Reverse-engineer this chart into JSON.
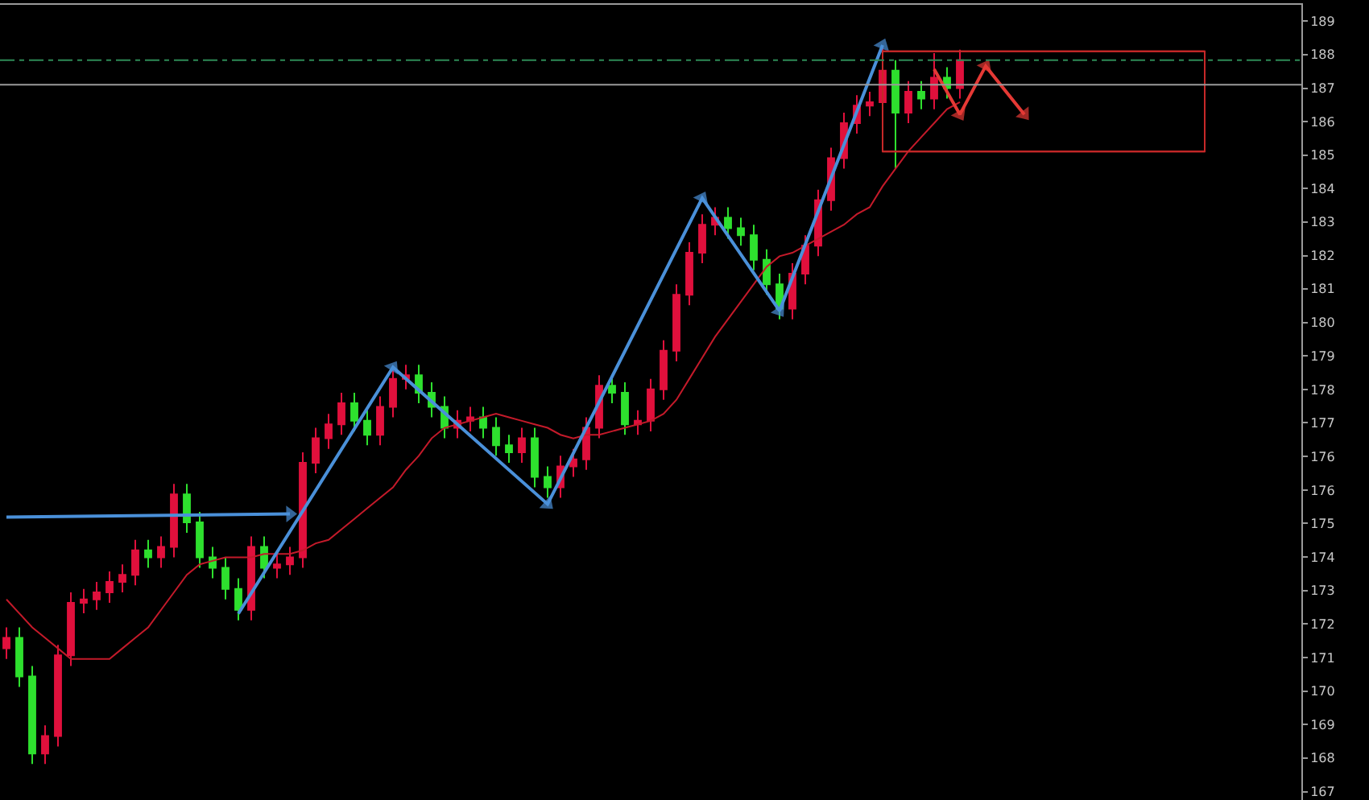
{
  "chart_data": {
    "type": "candlestick",
    "categories": [
      null,
      null,
      null,
      null,
      null,
      null,
      null,
      null,
      null,
      null,
      null,
      null,
      null,
      null,
      null,
      null,
      null,
      null,
      null,
      null,
      null,
      null,
      null,
      null,
      null,
      null,
      null,
      null,
      null,
      null,
      null,
      null,
      null,
      null,
      null,
      null,
      null,
      null,
      null,
      null,
      null,
      null,
      null,
      null,
      null,
      null,
      null,
      null,
      null,
      null,
      null,
      null,
      null,
      null,
      null,
      null,
      null,
      null,
      null,
      null,
      null,
      null,
      null,
      null,
      null,
      null,
      null,
      null,
      null,
      null,
      null,
      null,
      null,
      null,
      null,
      null,
      null,
      null,
      null,
      null,
      null,
      null,
      null,
      null,
      null,
      null,
      null,
      null,
      null,
      null,
      null,
      null,
      null,
      null,
      null,
      null,
      null,
      null,
      null,
      null,
      null
    ],
    "ohlc": [
      [
        171.0,
        171.6,
        170.7,
        171.3
      ],
      [
        171.3,
        171.6,
        169.9,
        170.2
      ],
      [
        170.2,
        170.5,
        167.7,
        168.0
      ],
      [
        168.0,
        168.8,
        167.7,
        168.5
      ],
      [
        168.5,
        171.1,
        168.2,
        170.8
      ],
      [
        170.8,
        172.6,
        170.5,
        172.3
      ],
      [
        172.3,
        172.7,
        172.0,
        172.4
      ],
      [
        172.4,
        172.9,
        172.1,
        172.6
      ],
      [
        172.6,
        173.2,
        172.3,
        172.9
      ],
      [
        172.9,
        173.4,
        172.6,
        173.1
      ],
      [
        173.1,
        174.1,
        172.8,
        173.8
      ],
      [
        173.8,
        174.1,
        173.3,
        173.6
      ],
      [
        173.6,
        174.2,
        173.3,
        173.9
      ],
      [
        173.9,
        175.7,
        173.6,
        175.4
      ],
      [
        175.4,
        175.7,
        174.3,
        174.6
      ],
      [
        174.6,
        174.9,
        173.3,
        173.6
      ],
      [
        173.6,
        173.9,
        173.0,
        173.3
      ],
      [
        173.3,
        173.6,
        172.4,
        172.7
      ],
      [
        172.7,
        173.0,
        171.8,
        172.1
      ],
      [
        172.1,
        174.2,
        171.8,
        173.9
      ],
      [
        173.9,
        174.2,
        173.0,
        173.3
      ],
      [
        173.3,
        173.7,
        173.0,
        173.4
      ],
      [
        173.4,
        173.9,
        173.1,
        173.6
      ],
      [
        173.6,
        176.6,
        173.3,
        176.3
      ],
      [
        176.3,
        177.3,
        176.0,
        177.0
      ],
      [
        177.0,
        177.7,
        176.7,
        177.4
      ],
      [
        177.4,
        178.3,
        177.1,
        178.0
      ],
      [
        178.0,
        178.3,
        177.2,
        177.5
      ],
      [
        177.5,
        177.8,
        176.8,
        177.1
      ],
      [
        177.1,
        178.2,
        176.8,
        177.9
      ],
      [
        177.9,
        179.0,
        177.6,
        178.7
      ],
      [
        178.7,
        179.1,
        178.4,
        178.8
      ],
      [
        178.8,
        179.1,
        178.0,
        178.3
      ],
      [
        178.3,
        178.6,
        177.6,
        177.9
      ],
      [
        177.9,
        178.2,
        177.0,
        177.3
      ],
      [
        177.3,
        177.8,
        177.0,
        177.5
      ],
      [
        177.5,
        177.9,
        177.2,
        177.6
      ],
      [
        177.6,
        177.9,
        177.0,
        177.3
      ],
      [
        177.3,
        177.6,
        176.5,
        176.8
      ],
      [
        176.8,
        177.1,
        176.3,
        176.6
      ],
      [
        176.6,
        177.3,
        176.3,
        177.0
      ],
      [
        177.0,
        177.3,
        175.6,
        175.9
      ],
      [
        175.9,
        176.2,
        175.3,
        175.6
      ],
      [
        175.6,
        176.5,
        175.3,
        176.2
      ],
      [
        176.2,
        176.7,
        175.9,
        176.4
      ],
      [
        176.4,
        177.6,
        176.1,
        177.3
      ],
      [
        177.3,
        178.8,
        177.0,
        178.5
      ],
      [
        178.5,
        178.8,
        178.0,
        178.3
      ],
      [
        178.3,
        178.6,
        177.1,
        177.4
      ],
      [
        177.4,
        177.8,
        177.1,
        177.5
      ],
      [
        177.5,
        178.7,
        177.2,
        178.4
      ],
      [
        178.4,
        179.8,
        178.1,
        179.5
      ],
      [
        179.5,
        181.4,
        179.2,
        181.1
      ],
      [
        181.1,
        182.6,
        180.8,
        182.3
      ],
      [
        182.3,
        183.4,
        182.0,
        183.1
      ],
      [
        183.1,
        183.6,
        182.8,
        183.3
      ],
      [
        183.3,
        183.6,
        182.7,
        183.0
      ],
      [
        183.0,
        183.3,
        182.5,
        182.8
      ],
      [
        182.8,
        183.1,
        181.8,
        182.1
      ],
      [
        182.1,
        182.4,
        181.1,
        181.4
      ],
      [
        181.4,
        181.7,
        180.4,
        180.7
      ],
      [
        180.7,
        182.0,
        180.4,
        181.7
      ],
      [
        181.7,
        182.8,
        181.4,
        182.5
      ],
      [
        182.5,
        184.1,
        182.2,
        183.8
      ],
      [
        183.8,
        185.3,
        183.5,
        185.0
      ],
      [
        185.0,
        186.3,
        184.7,
        186.0
      ],
      [
        186.0,
        186.8,
        185.7,
        186.5
      ],
      [
        186.5,
        186.9,
        186.2,
        186.6
      ],
      [
        186.6,
        188.2,
        186.3,
        187.5
      ],
      [
        187.5,
        187.8,
        184.7,
        186.3
      ],
      [
        186.3,
        187.2,
        186.0,
        186.9
      ],
      [
        186.9,
        187.2,
        186.4,
        186.7
      ],
      [
        186.7,
        188.0,
        186.4,
        187.3
      ],
      [
        187.3,
        187.6,
        186.7,
        187.0
      ],
      [
        187.0,
        188.1,
        186.7,
        187.8
      ],
      null,
      null,
      null,
      null,
      null,
      null,
      null,
      null,
      null,
      null,
      null,
      null,
      null,
      null,
      null,
      null,
      null,
      null,
      null,
      null,
      null,
      null,
      null,
      null,
      null,
      null
    ],
    "colors": [
      "#e0103c",
      "#2ee02e",
      "#2ee02e",
      "#e0103c",
      "#e0103c",
      "#e0103c",
      "#e0103c",
      "#e0103c",
      "#e0103c",
      "#e0103c",
      "#e0103c",
      "#2ee02e",
      "#e0103c",
      "#e0103c",
      "#2ee02e",
      "#2ee02e",
      "#2ee02e",
      "#2ee02e",
      "#2ee02e",
      "#e0103c",
      "#2ee02e",
      "#e0103c",
      "#e0103c",
      "#e0103c",
      "#e0103c",
      "#e0103c",
      "#e0103c",
      "#2ee02e",
      "#2ee02e",
      "#e0103c",
      "#e0103c",
      "#e0103c",
      "#2ee02e",
      "#2ee02e",
      "#2ee02e",
      "#e0103c",
      "#e0103c",
      "#2ee02e",
      "#2ee02e",
      "#2ee02e",
      "#e0103c",
      "#2ee02e",
      "#2ee02e",
      "#e0103c",
      "#e0103c",
      "#e0103c",
      "#e0103c",
      "#2ee02e",
      "#2ee02e",
      "#e0103c",
      "#e0103c",
      "#e0103c",
      "#e0103c",
      "#e0103c",
      "#e0103c",
      "#e0103c",
      "#2ee02e",
      "#2ee02e",
      "#2ee02e",
      "#2ee02e",
      "#2ee02e",
      "#e0103c",
      "#e0103c",
      "#e0103c",
      "#e0103c",
      "#e0103c",
      "#e0103c",
      "#e0103c",
      "#e0103c",
      "#2ee02e",
      "#e0103c",
      "#2ee02e",
      "#e0103c",
      "#2ee02e",
      "#e0103c",
      null,
      null,
      null,
      null,
      null,
      null,
      null,
      null,
      null,
      null,
      null,
      null,
      null,
      null,
      null,
      null,
      null,
      null,
      null,
      null,
      null,
      null,
      null,
      null,
      null,
      null
    ],
    "series": [
      {
        "type": "line",
        "color": "#c41a2a",
        "marker": "none",
        "values": [
          172.4,
          172.0,
          171.6,
          171.3,
          171.0,
          170.7,
          170.7,
          170.7,
          170.7,
          171.0,
          171.3,
          171.6,
          172.1,
          172.6,
          173.1,
          173.4,
          173.5,
          173.6,
          173.6,
          173.6,
          173.7,
          173.7,
          173.7,
          173.8,
          174.0,
          174.1,
          174.4,
          174.7,
          175.0,
          175.3,
          175.6,
          176.1,
          176.5,
          177.0,
          177.3,
          177.4,
          177.5,
          177.6,
          177.7,
          177.6,
          177.5,
          177.4,
          177.3,
          177.1,
          177.0,
          177.1,
          177.1,
          177.2,
          177.3,
          177.4,
          177.5,
          177.7,
          178.1,
          178.7,
          179.3,
          179.9,
          180.4,
          180.9,
          181.4,
          181.9,
          182.2,
          182.3,
          182.5,
          182.7,
          182.9,
          183.1,
          183.4,
          183.6,
          184.2,
          184.7,
          185.2,
          185.6,
          186.0,
          186.4,
          186.6,
          null,
          null,
          null,
          null,
          null,
          null,
          null,
          null,
          null,
          null,
          null,
          null,
          null,
          null,
          null,
          null,
          null,
          null,
          null,
          null,
          null,
          null,
          null,
          null,
          null,
          null
        ]
      },
      {
        "type": "line",
        "color": "#4a90d9",
        "marker": "triangle",
        "values": [
          174.75,
          null,
          null,
          null,
          null,
          null,
          null,
          null,
          null,
          null,
          null,
          null,
          null,
          null,
          null,
          null,
          null,
          null,
          null,
          null,
          null,
          null,
          174.84,
          null,
          null,
          null,
          null,
          null,
          null,
          null,
          null,
          null,
          null,
          null,
          null,
          null,
          null,
          null,
          null,
          null,
          null,
          null,
          null,
          null,
          null,
          null,
          null,
          null,
          null,
          null,
          null,
          null,
          null,
          null,
          null,
          null,
          null,
          null,
          null,
          null,
          null,
          null,
          null,
          null,
          null,
          null,
          null,
          null,
          null,
          null,
          null,
          null,
          null,
          null,
          null,
          null,
          null,
          null,
          null,
          null,
          null,
          null,
          null,
          null,
          null,
          null,
          null,
          null,
          null,
          null,
          null,
          null,
          null,
          null,
          null,
          null,
          null,
          null,
          null,
          null,
          null
        ]
      },
      {
        "type": "line",
        "color": "#4a90d9",
        "marker": "triangle",
        "values": [
          null,
          null,
          null,
          null,
          null,
          null,
          null,
          null,
          null,
          null,
          null,
          null,
          null,
          null,
          null,
          null,
          null,
          null,
          171.99,
          null,
          null,
          null,
          null,
          null,
          null,
          null,
          null,
          null,
          null,
          null,
          179.03,
          null,
          null,
          null,
          null,
          null,
          null,
          null,
          null,
          null,
          null,
          null,
          175.12,
          null,
          null,
          null,
          null,
          null,
          null,
          null,
          null,
          null,
          null,
          null,
          183.86,
          null,
          null,
          null,
          null,
          null,
          180.64,
          null,
          null,
          null,
          null,
          null,
          null,
          null,
          188.23,
          null,
          null,
          null,
          null,
          null,
          null,
          null,
          null,
          null,
          null,
          null,
          null,
          null,
          null,
          null,
          null,
          null,
          null,
          null,
          null,
          null,
          null,
          null,
          null,
          null,
          null,
          null,
          null,
          null,
          null,
          null,
          null
        ]
      },
      {
        "type": "line",
        "color": "#e53935",
        "marker": "triangle",
        "values": [
          null,
          null,
          null,
          null,
          null,
          null,
          null,
          null,
          null,
          null,
          null,
          null,
          null,
          null,
          null,
          null,
          null,
          null,
          null,
          null,
          null,
          null,
          null,
          null,
          null,
          null,
          null,
          null,
          null,
          null,
          null,
          null,
          null,
          null,
          null,
          null,
          null,
          null,
          null,
          null,
          null,
          null,
          null,
          null,
          null,
          null,
          null,
          null,
          null,
          null,
          null,
          null,
          null,
          null,
          null,
          null,
          null,
          null,
          null,
          null,
          null,
          null,
          null,
          null,
          null,
          null,
          null,
          null,
          null,
          null,
          null,
          null,
          187.54,
          null,
          186.25,
          null,
          187.63,
          null,
          null,
          186.25,
          null,
          null,
          null,
          null,
          null,
          null,
          null,
          null,
          null,
          null,
          null,
          null,
          null,
          null,
          null,
          null,
          null,
          null,
          null,
          null,
          null
        ]
      },
      {
        "type": "line",
        "color": "#c62828",
        "marker": "none",
        "values": [
          null,
          null,
          null,
          null,
          null,
          null,
          null,
          null,
          null,
          null,
          null,
          null,
          null,
          null,
          null,
          null,
          null,
          null,
          null,
          null,
          null,
          null,
          null,
          null,
          null,
          null,
          null,
          null,
          null,
          null,
          null,
          null,
          null,
          null,
          null,
          null,
          null,
          null,
          null,
          null,
          null,
          null,
          null,
          null,
          null,
          null,
          null,
          null,
          null,
          null,
          null,
          null,
          null,
          null,
          null,
          null,
          null,
          null,
          null,
          null,
          null,
          null,
          null,
          null,
          null,
          null,
          null,
          null,
          188.05,
          188.05,
          188.05,
          188.05,
          188.05,
          188.05,
          188.05,
          188.05,
          188.05,
          188.05,
          188.05,
          188.05,
          188.05,
          188.05,
          188.05,
          188.05,
          188.05,
          188.05,
          188.05,
          188.05,
          188.05,
          188.05,
          188.05,
          188.05,
          188.05,
          188.05,
          null,
          null,
          null,
          null,
          null,
          null,
          null
        ]
      },
      {
        "type": "line",
        "color": "#c62828",
        "marker": "none",
        "values": [
          null,
          null,
          null,
          null,
          null,
          null,
          null,
          null,
          null,
          null,
          null,
          null,
          null,
          null,
          null,
          null,
          null,
          null,
          null,
          null,
          null,
          null,
          null,
          null,
          null,
          null,
          null,
          null,
          null,
          null,
          null,
          null,
          null,
          null,
          null,
          null,
          null,
          null,
          null,
          null,
          null,
          null,
          null,
          null,
          null,
          null,
          null,
          null,
          null,
          null,
          null,
          null,
          null,
          null,
          null,
          null,
          null,
          null,
          null,
          null,
          null,
          null,
          null,
          null,
          null,
          null,
          null,
          null,
          185.19,
          185.19,
          185.19,
          185.19,
          185.19,
          185.19,
          185.19,
          185.19,
          185.19,
          185.19,
          185.19,
          185.19,
          185.19,
          185.19,
          185.19,
          185.19,
          185.19,
          185.19,
          185.19,
          185.19,
          185.19,
          185.19,
          185.19,
          185.19,
          185.19,
          185.19,
          null,
          null,
          null,
          null,
          null,
          null,
          null
        ]
      }
    ],
    "ref_lines": [
      {
        "axis": "y",
        "value": 187.8,
        "color": "#2e8b57",
        "line_style": "dashed"
      },
      {
        "axis": "y",
        "value": 187.1,
        "color": "#9a9a9a",
        "line_style": "solid"
      }
    ],
    "ylim": [
      166.67,
      189.38
    ],
    "yticks": [
      {
        "value": 188.92,
        "label": "189"
      },
      {
        "value": 187.96,
        "label": "188"
      },
      {
        "value": 187.0,
        "label": "187"
      },
      {
        "value": 186.05,
        "label": "186"
      },
      {
        "value": 185.09,
        "label": "185"
      },
      {
        "value": 184.13,
        "label": "184"
      },
      {
        "value": 183.18,
        "label": "183"
      },
      {
        "value": 182.22,
        "label": "182"
      },
      {
        "value": 181.27,
        "label": "181"
      },
      {
        "value": 180.31,
        "label": "180"
      },
      {
        "value": 179.35,
        "label": "179"
      },
      {
        "value": 178.39,
        "label": "178"
      },
      {
        "value": 177.44,
        "label": "177"
      },
      {
        "value": 176.48,
        "label": "176"
      },
      {
        "value": 175.52,
        "label": "176"
      },
      {
        "value": 174.57,
        "label": "175"
      },
      {
        "value": 173.61,
        "label": "174"
      },
      {
        "value": 172.65,
        "label": "173"
      },
      {
        "value": 171.7,
        "label": "172"
      },
      {
        "value": 170.74,
        "label": "171"
      },
      {
        "value": 169.78,
        "label": "170"
      },
      {
        "value": 168.83,
        "label": "169"
      },
      {
        "value": 167.87,
        "label": "168"
      },
      {
        "value": 166.91,
        "label": "167"
      }
    ],
    "tick_labels": "y",
    "grid": false
  }
}
